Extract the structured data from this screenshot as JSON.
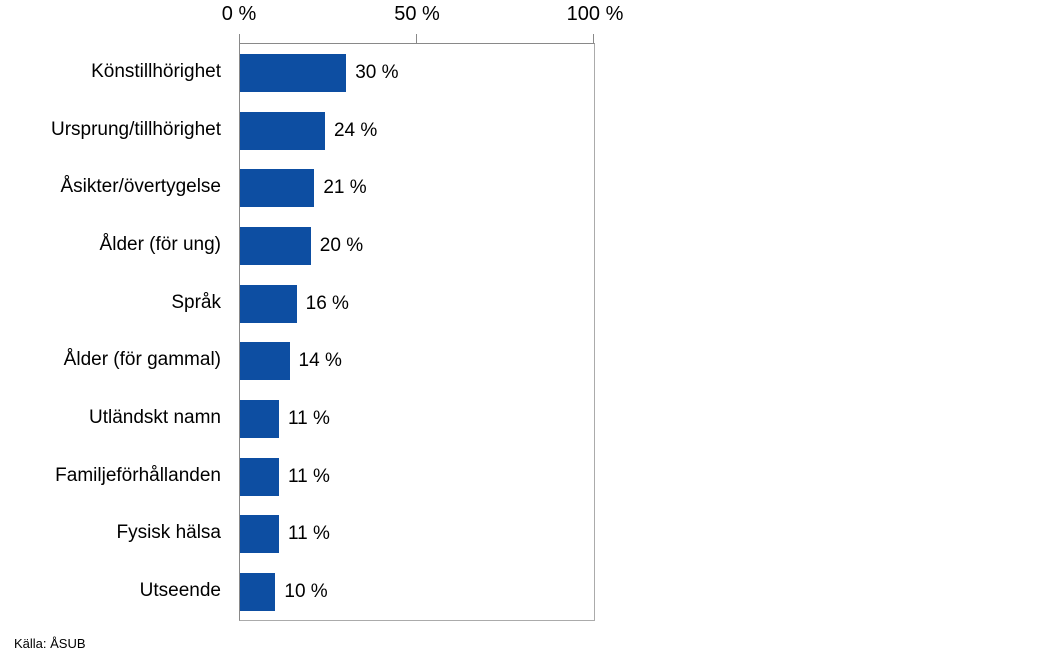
{
  "chart_data": {
    "type": "bar",
    "orientation": "horizontal",
    "title": "",
    "categories": [
      "Könstillhörighet",
      "Ursprung/tillhörighet",
      "Åsikter/övertygelse",
      "Ålder (för ung)",
      "Språk",
      "Ålder (för gammal)",
      "Utländskt namn",
      "Familjeförhållanden",
      "Fysisk hälsa",
      "Utseende"
    ],
    "values": [
      30,
      24,
      21,
      20,
      16,
      14,
      11,
      11,
      11,
      10
    ],
    "value_labels": [
      "30 %",
      "24 %",
      "21 %",
      "20 %",
      "16 %",
      "14 %",
      "11 %",
      "11 %",
      "11 %",
      "10 %"
    ],
    "x_axis": {
      "position": "top",
      "range": [
        0,
        100
      ],
      "ticks": [
        0,
        50,
        100
      ],
      "tick_labels": [
        "0 %",
        "50 %",
        "100 %"
      ]
    },
    "bar_color": "#0d4ea2",
    "grid": false,
    "legend": false,
    "source": "Källa: ÅSUB"
  }
}
